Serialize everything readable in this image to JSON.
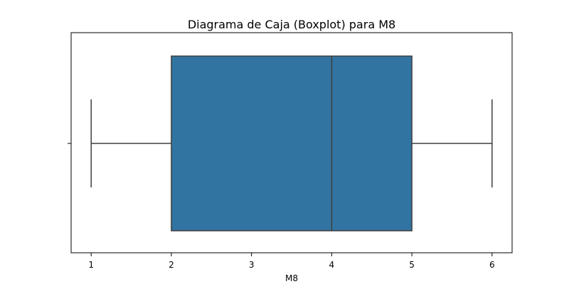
{
  "chart_data": {
    "type": "box",
    "title": "Diagrama de Caja (Boxplot) para M8",
    "xlabel": "M8",
    "ylabel": "",
    "orientation": "horizontal",
    "xlim": [
      0.75,
      6.25
    ],
    "xticks": [
      1,
      2,
      3,
      4,
      5,
      6
    ],
    "xtick_labels": [
      "1",
      "2",
      "3",
      "4",
      "5",
      "6"
    ],
    "grid": false,
    "box": {
      "whisker_low": 1,
      "q1": 2,
      "median": 4,
      "q3": 5,
      "whisker_high": 6
    },
    "colors": {
      "box_fill": "#3274a1",
      "line": "#3f3f3f",
      "axes": "#000000"
    }
  }
}
